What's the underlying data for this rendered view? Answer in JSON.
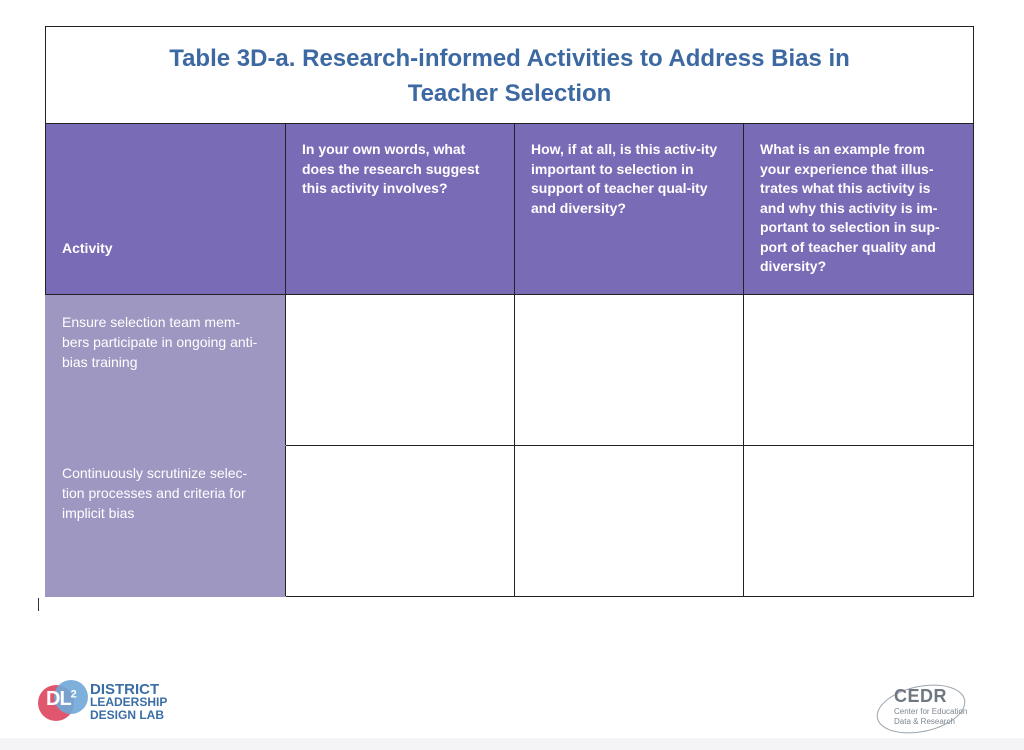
{
  "table": {
    "title_line1": "Table 3D-a. Research-informed Activities to Address Bias in",
    "title_line2": "Teacher Selection",
    "headers": [
      "Activity",
      "In your own words, what does the research suggest this activity involves?",
      "How, if at all, is this activ-ity important to selection in support of teacher qual-ity and diversity?",
      "What is an example from your experience that illus-trates what this activity is and why this activity is im-portant to selection in sup-port of teacher quality and diversity?"
    ],
    "rows": [
      {
        "activity": "Ensure selection team mem-bers participate in ongoing anti-bias training"
      },
      {
        "activity": "Continuously scrutinize selec-tion processes and criteria for implicit bias"
      }
    ]
  },
  "logos": {
    "dl2_mark": "DL",
    "dl2_mark_sup": "2",
    "dl2_line1": "DISTRICT",
    "dl2_line2": "LEADERSHIP",
    "dl2_line3": "DESIGN LAB",
    "cedr_name": "CEDR",
    "cedr_line1": "Center for Education",
    "cedr_line2": "Data & Research"
  },
  "colors": {
    "title": "#3d69a3",
    "header_bg": "#7a6bb6",
    "activity_bg": "#9d97c1"
  }
}
